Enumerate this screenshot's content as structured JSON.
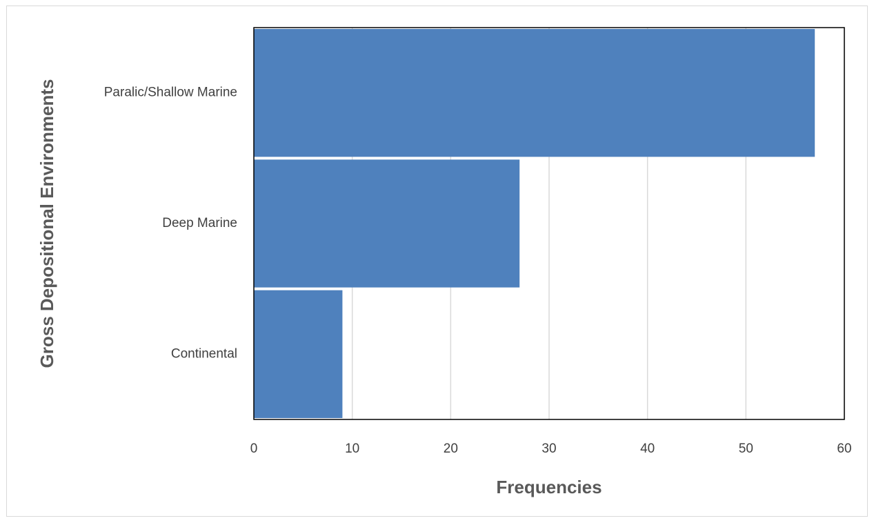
{
  "chart_data": {
    "type": "bar",
    "orientation": "horizontal",
    "categories": [
      "Paralic/Shallow Marine",
      "Deep Marine",
      "Continental"
    ],
    "values": [
      57,
      27,
      9
    ],
    "color": "#4f81bd",
    "xlabel": "Frequencies",
    "ylabel": "Gross Depositional Environments",
    "xlim": [
      0,
      60
    ],
    "xticks": [
      0,
      10,
      20,
      30,
      40,
      50,
      60
    ],
    "grid": true
  }
}
